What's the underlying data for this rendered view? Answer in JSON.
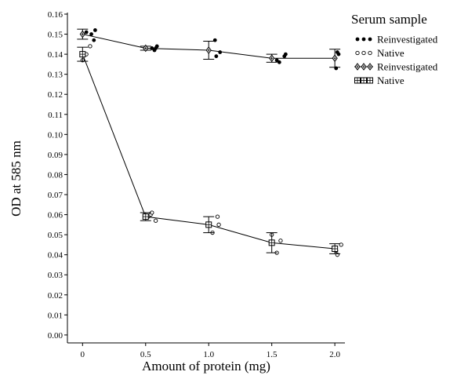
{
  "chart_data": {
    "type": "scatter",
    "xlabel": "Amount of protein (mg)",
    "ylabel": "OD at 585 nm",
    "xlim": [
      -0.12,
      2.08
    ],
    "ylim": [
      -0.002,
      0.16
    ],
    "x_ticks": [
      0,
      0.5,
      1.0,
      1.5,
      2.0
    ],
    "x_tick_labels": [
      "0",
      "0.5",
      "1.0",
      "1.5",
      "2.0"
    ],
    "y_ticks": [
      0,
      0.01,
      0.02,
      0.03,
      0.04,
      0.05,
      0.06,
      0.07,
      0.08,
      0.09,
      0.1,
      0.11,
      0.12,
      0.13,
      0.14,
      0.15,
      0.16
    ],
    "y_tick_labels": [
      "0.00",
      "0.01",
      "0.02",
      "0.03",
      "0.04",
      "0.05",
      "0.06",
      "0.07",
      "0.08",
      "0.09",
      "0.10",
      "0.11",
      "0.12",
      "0.13",
      "0.14",
      "0.15",
      "0.16"
    ],
    "legend": {
      "title": "Serum sample",
      "placement": "top-right",
      "entries": [
        "Reinvestigated",
        "Native",
        "Reinvestigated",
        "Native"
      ]
    },
    "series": [
      {
        "name": "Reinvestigated",
        "marker": "filled-circle",
        "points": [
          {
            "x": 0.03,
            "y": 0.151
          },
          {
            "x": 0.07,
            "y": 0.15
          },
          {
            "x": 0.09,
            "y": 0.147
          },
          {
            "x": 0.1,
            "y": 0.152
          },
          {
            "x": 0.55,
            "y": 0.143
          },
          {
            "x": 0.57,
            "y": 0.142
          },
          {
            "x": 0.58,
            "y": 0.143
          },
          {
            "x": 0.59,
            "y": 0.144
          },
          {
            "x": 1.05,
            "y": 0.147
          },
          {
            "x": 1.06,
            "y": 0.139
          },
          {
            "x": 1.09,
            "y": 0.141
          },
          {
            "x": 1.54,
            "y": 0.137
          },
          {
            "x": 1.56,
            "y": 0.136
          },
          {
            "x": 1.6,
            "y": 0.139
          },
          {
            "x": 1.61,
            "y": 0.14
          },
          {
            "x": 2.01,
            "y": 0.133
          },
          {
            "x": 2.02,
            "y": 0.141
          },
          {
            "x": 2.03,
            "y": 0.14
          }
        ]
      },
      {
        "name": "Native",
        "marker": "open-circle",
        "points": [
          {
            "x": 0.0,
            "y": 0.137
          },
          {
            "x": 0.03,
            "y": 0.14
          },
          {
            "x": 0.06,
            "y": 0.144
          },
          {
            "x": 0.52,
            "y": 0.059
          },
          {
            "x": 0.54,
            "y": 0.06
          },
          {
            "x": 0.55,
            "y": 0.061
          },
          {
            "x": 0.58,
            "y": 0.057
          },
          {
            "x": 1.03,
            "y": 0.051
          },
          {
            "x": 1.07,
            "y": 0.059
          },
          {
            "x": 1.08,
            "y": 0.055
          },
          {
            "x": 1.5,
            "y": 0.05
          },
          {
            "x": 1.54,
            "y": 0.041
          },
          {
            "x": 1.57,
            "y": 0.047
          },
          {
            "x": 2.01,
            "y": 0.042
          },
          {
            "x": 2.02,
            "y": 0.04
          },
          {
            "x": 2.05,
            "y": 0.045
          }
        ]
      },
      {
        "name": "Reinvestigated",
        "marker": "diamond-mean",
        "line": true,
        "x": [
          0,
          0.5,
          1.0,
          1.5,
          2.0
        ],
        "y": [
          0.15,
          0.143,
          0.142,
          0.138,
          0.138
        ],
        "err": [
          0.0025,
          0.001,
          0.0045,
          0.002,
          0.0045
        ]
      },
      {
        "name": "Native",
        "marker": "square-mean",
        "line": true,
        "x": [
          0,
          0.5,
          1.0,
          1.5,
          2.0
        ],
        "y": [
          0.14,
          0.059,
          0.055,
          0.046,
          0.043
        ],
        "err": [
          0.0035,
          0.002,
          0.004,
          0.005,
          0.0025
        ]
      }
    ]
  }
}
